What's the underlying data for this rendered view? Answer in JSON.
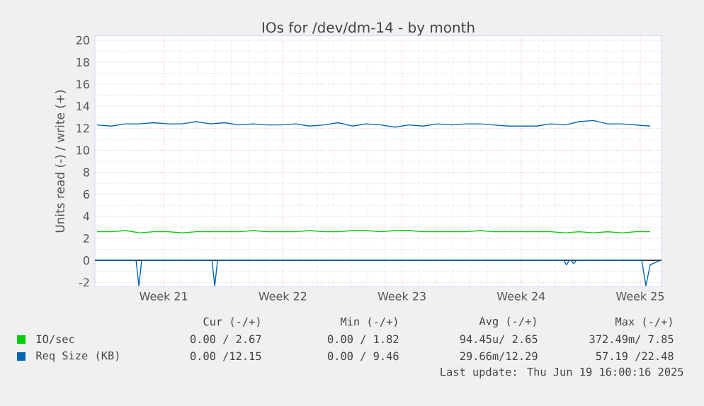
{
  "chart_data": {
    "type": "line",
    "title": "IOs for /dev/dm-14 - by month",
    "ylabel": "Units read (-) / write (+)",
    "x": [
      "2025-05-17T12:00",
      "2025-05-18T08:00",
      "2025-05-19T04:00",
      "2025-05-20T00:00",
      "2025-05-20T20:00",
      "2025-05-21T16:00",
      "2025-05-22T12:00",
      "2025-05-23T08:00",
      "2025-05-24T04:00",
      "2025-05-25T00:00",
      "2025-05-25T20:00",
      "2025-05-26T16:00",
      "2025-05-27T12:00",
      "2025-05-28T08:00",
      "2025-05-29T04:00",
      "2025-05-30T00:00",
      "2025-05-30T20:00",
      "2025-05-31T16:00",
      "2025-06-01T12:00",
      "2025-06-02T08:00",
      "2025-06-03T04:00",
      "2025-06-04T00:00",
      "2025-06-04T20:00",
      "2025-06-05T16:00",
      "2025-06-06T12:00",
      "2025-06-07T08:00",
      "2025-06-08T04:00",
      "2025-06-09T00:00",
      "2025-06-09T20:00",
      "2025-06-10T16:00",
      "2025-06-11T12:00",
      "2025-06-12T08:00",
      "2025-06-13T04:00",
      "2025-06-14T00:00",
      "2025-06-14T20:00",
      "2025-06-15T16:00",
      "2025-06-16T12:00",
      "2025-06-17T08:00",
      "2025-06-18T04:00",
      "2025-06-19T00:00"
    ],
    "series": [
      {
        "name": "IO/sec",
        "color": "#00cc00",
        "values": [
          2.6,
          2.6,
          2.7,
          2.5,
          2.6,
          2.6,
          2.5,
          2.6,
          2.6,
          2.6,
          2.6,
          2.7,
          2.6,
          2.6,
          2.6,
          2.7,
          2.6,
          2.6,
          2.7,
          2.7,
          2.6,
          2.7,
          2.7,
          2.6,
          2.6,
          2.6,
          2.6,
          2.7,
          2.6,
          2.6,
          2.6,
          2.6,
          2.6,
          2.5,
          2.6,
          2.5,
          2.6,
          2.5,
          2.6,
          2.6
        ]
      },
      {
        "name": "Req Size (KB)",
        "color": "#0066b3",
        "values": [
          12.3,
          12.2,
          12.4,
          12.4,
          12.5,
          12.4,
          12.4,
          12.6,
          12.4,
          12.5,
          12.3,
          12.4,
          12.3,
          12.3,
          12.4,
          12.2,
          12.3,
          12.5,
          12.2,
          12.4,
          12.3,
          12.1,
          12.3,
          12.2,
          12.4,
          12.3,
          12.4,
          12.4,
          12.3,
          12.2,
          12.2,
          12.2,
          12.4,
          12.3,
          12.6,
          12.7,
          12.4,
          12.4,
          12.3,
          12.2
        ]
      },
      {
        "color": "#0066b3",
        "x": [
          "2025-05-17T10:00",
          "2025-05-19T19:00",
          "2025-05-19T23:00",
          "2025-05-20T03:00",
          "2025-05-24T06:00",
          "2025-05-24T10:00",
          "2025-05-24T14:00",
          "2025-06-13T22:00",
          "2025-06-14T02:00",
          "2025-06-14T06:00",
          "2025-06-14T08:00",
          "2025-06-14T12:00",
          "2025-06-14T16:00",
          "2025-06-18T12:00",
          "2025-06-18T18:00",
          "2025-06-19T00:00",
          "2025-06-19T04:00",
          "2025-06-19T14:00"
        ],
        "values": [
          0,
          0,
          -2.3,
          0,
          0,
          -2.3,
          0,
          0,
          -0.4,
          0,
          0,
          -0.3,
          0,
          0,
          -2.3,
          -0.4,
          -0.3,
          0
        ]
      }
    ],
    "xlim": [
      "2025-05-17T09:00",
      "2025-06-19T16:00"
    ],
    "xticks": [
      {
        "value": "2025-05-21T10:00",
        "label": "Week 21"
      },
      {
        "value": "2025-05-28T10:00",
        "label": "Week 22"
      },
      {
        "value": "2025-06-04T10:00",
        "label": "Week 23"
      },
      {
        "value": "2025-06-11T10:00",
        "label": "Week 24"
      },
      {
        "value": "2025-06-18T10:00",
        "label": "Week 25"
      }
    ],
    "ylim": [
      -2.4,
      20.4
    ],
    "yticks": [
      -2,
      0,
      2,
      4,
      6,
      8,
      10,
      12,
      14,
      16,
      18,
      20
    ],
    "grid": true,
    "legend": "bottom left",
    "ref_lines": [
      {
        "axis": "y",
        "value": 0,
        "color": "#000000"
      }
    ],
    "annotations": [
      "Cur (-/+)",
      "Min (-/+)",
      "Avg (-/+)",
      "Max (-/+)",
      "0.00 / 2.67",
      "0.00 / 1.82",
      "94.45u/ 2.65",
      "372.49m/ 7.85",
      "0.00 /12.15",
      "0.00 / 9.46",
      "29.66m/12.29",
      "57.19 /22.48",
      "Last update: Thu Jun 19 16:00:16 2025"
    ]
  }
}
